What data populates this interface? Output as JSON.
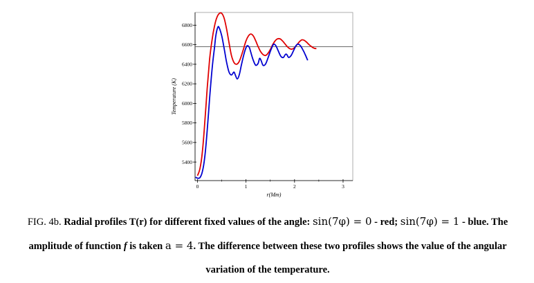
{
  "chart_data": {
    "type": "line",
    "xlabel": "r(Mm)",
    "ylabel": "Temperature (K)",
    "xlim": [
      -0.05,
      3.2
    ],
    "ylim": [
      5210,
      6930
    ],
    "x_ticks": [
      "0",
      "1",
      "2",
      "3"
    ],
    "y_ticks": [
      "5400",
      "5600",
      "5800",
      "6000",
      "6200",
      "6400",
      "6600",
      "6800"
    ],
    "reference_line_y": 6580,
    "series": [
      {
        "color": "#e00000",
        "points": [
          [
            0.0,
            5260
          ],
          [
            0.05,
            5330
          ],
          [
            0.1,
            5500
          ],
          [
            0.15,
            5800
          ],
          [
            0.2,
            6150
          ],
          [
            0.25,
            6450
          ],
          [
            0.3,
            6650
          ],
          [
            0.35,
            6790
          ],
          [
            0.4,
            6880
          ],
          [
            0.45,
            6920
          ],
          [
            0.5,
            6920
          ],
          [
            0.55,
            6870
          ],
          [
            0.6,
            6760
          ],
          [
            0.65,
            6620
          ],
          [
            0.7,
            6490
          ],
          [
            0.75,
            6420
          ],
          [
            0.8,
            6400
          ],
          [
            0.85,
            6420
          ],
          [
            0.9,
            6480
          ],
          [
            0.95,
            6560
          ],
          [
            1.0,
            6640
          ],
          [
            1.05,
            6690
          ],
          [
            1.1,
            6710
          ],
          [
            1.15,
            6690
          ],
          [
            1.2,
            6640
          ],
          [
            1.25,
            6580
          ],
          [
            1.3,
            6530
          ],
          [
            1.35,
            6500
          ],
          [
            1.4,
            6490
          ],
          [
            1.45,
            6510
          ],
          [
            1.5,
            6550
          ],
          [
            1.55,
            6600
          ],
          [
            1.6,
            6640
          ],
          [
            1.65,
            6660
          ],
          [
            1.7,
            6660
          ],
          [
            1.75,
            6640
          ],
          [
            1.8,
            6610
          ],
          [
            1.85,
            6580
          ],
          [
            1.9,
            6560
          ],
          [
            1.95,
            6555
          ],
          [
            2.0,
            6570
          ],
          [
            2.05,
            6600
          ],
          [
            2.1,
            6630
          ],
          [
            2.15,
            6650
          ],
          [
            2.2,
            6645
          ],
          [
            2.25,
            6625
          ],
          [
            2.3,
            6600
          ],
          [
            2.35,
            6580
          ],
          [
            2.4,
            6565
          ],
          [
            2.45,
            6560
          ]
        ]
      },
      {
        "color": "#0000d0",
        "points": [
          [
            -0.04,
            5245
          ],
          [
            0.0,
            5235
          ],
          [
            0.05,
            5240
          ],
          [
            0.1,
            5300
          ],
          [
            0.15,
            5450
          ],
          [
            0.2,
            5720
          ],
          [
            0.25,
            6050
          ],
          [
            0.3,
            6350
          ],
          [
            0.35,
            6570
          ],
          [
            0.38,
            6700
          ],
          [
            0.42,
            6780
          ],
          [
            0.45,
            6770
          ],
          [
            0.5,
            6690
          ],
          [
            0.55,
            6560
          ],
          [
            0.6,
            6420
          ],
          [
            0.65,
            6320
          ],
          [
            0.7,
            6290
          ],
          [
            0.75,
            6320
          ],
          [
            0.78,
            6290
          ],
          [
            0.82,
            6250
          ],
          [
            0.86,
            6290
          ],
          [
            0.9,
            6380
          ],
          [
            0.95,
            6490
          ],
          [
            1.0,
            6570
          ],
          [
            1.03,
            6590
          ],
          [
            1.07,
            6570
          ],
          [
            1.1,
            6520
          ],
          [
            1.15,
            6440
          ],
          [
            1.2,
            6390
          ],
          [
            1.25,
            6410
          ],
          [
            1.28,
            6460
          ],
          [
            1.31,
            6440
          ],
          [
            1.35,
            6390
          ],
          [
            1.4,
            6400
          ],
          [
            1.45,
            6460
          ],
          [
            1.5,
            6530
          ],
          [
            1.55,
            6590
          ],
          [
            1.58,
            6605
          ],
          [
            1.62,
            6585
          ],
          [
            1.67,
            6530
          ],
          [
            1.72,
            6480
          ],
          [
            1.77,
            6470
          ],
          [
            1.81,
            6500
          ],
          [
            1.84,
            6500
          ],
          [
            1.88,
            6470
          ],
          [
            1.93,
            6490
          ],
          [
            1.98,
            6540
          ],
          [
            2.03,
            6590
          ],
          [
            2.07,
            6605
          ],
          [
            2.12,
            6590
          ],
          [
            2.17,
            6550
          ],
          [
            2.22,
            6500
          ],
          [
            2.27,
            6440
          ]
        ]
      }
    ]
  },
  "caption": {
    "fig_label": "FIG. 4b.",
    "line1_text": "Radial profiles T(r) for different fixed values of the angle:",
    "math_red": "sin(7φ) = 0",
    "red_word": "- red;",
    "math_blue": "sin(7φ) = 1",
    "blue_word": "- blue. The",
    "line2_text_a": "amplitude of function",
    "f_symbol": "f",
    "line2_text_b": "is taken",
    "math_a": "a = 4",
    "line2_text_c": ". The difference between these two profiles shows the value of the angular",
    "line3_text": "variation of the temperature."
  }
}
